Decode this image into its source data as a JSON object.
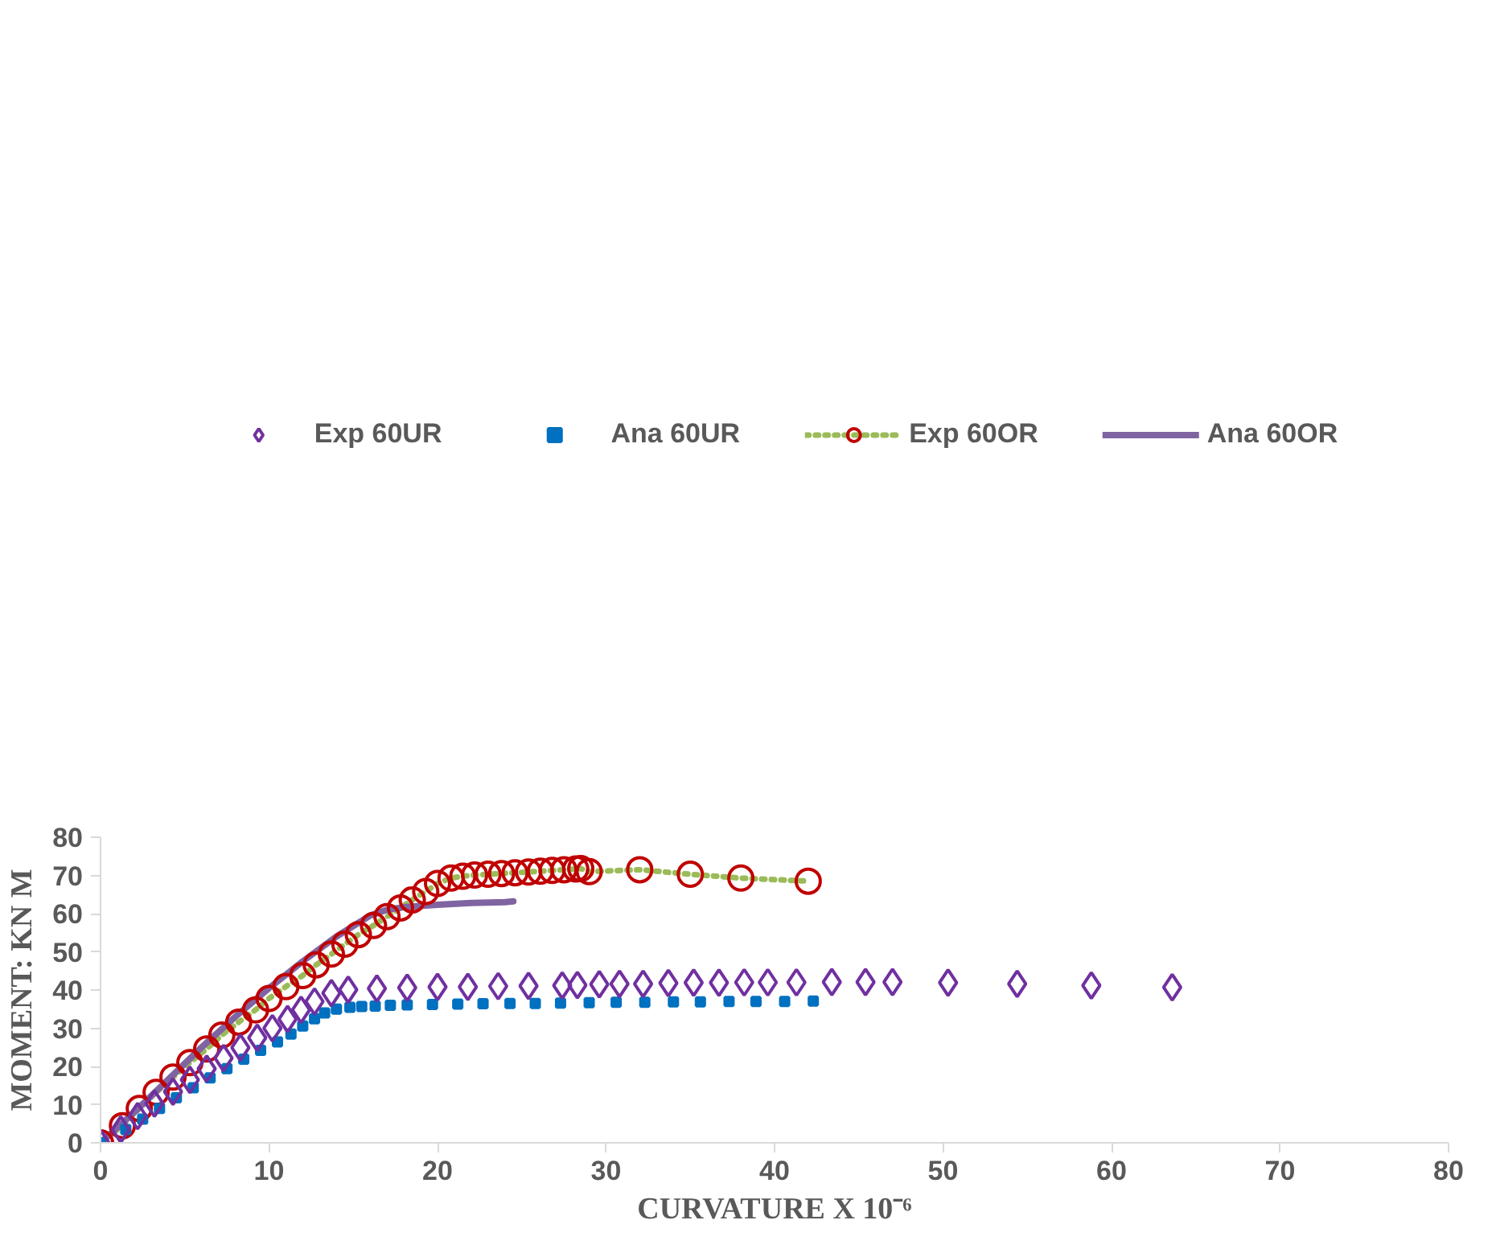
{
  "chart_data": {
    "type": "scatter",
    "xlabel": "CURVATURE X 10⁻⁶",
    "ylabel": "MOMENT: KN M",
    "xlim": [
      0,
      80
    ],
    "ylim": [
      0,
      80
    ],
    "xticks": [
      0,
      10,
      20,
      30,
      40,
      50,
      60,
      70,
      80
    ],
    "yticks": [
      0,
      10,
      20,
      30,
      40,
      50,
      60,
      70,
      80
    ],
    "grid": false,
    "legend": "top",
    "series": [
      {
        "name": "Exp 60UR",
        "marker": "diamond",
        "color": "#7030a0",
        "x": [
          0,
          1.2,
          2.2,
          3.2,
          4.3,
          5.3,
          6.3,
          7.3,
          8.3,
          9.3,
          10.2,
          11.1,
          11.9,
          12.7,
          13.7,
          14.7,
          16.4,
          18.2,
          20,
          21.8,
          23.6,
          25.4,
          27.4,
          28.3,
          29.6,
          30.8,
          32.2,
          33.7,
          35.2,
          36.7,
          38.2,
          39.6,
          41.3,
          43.4,
          45.4,
          47.0,
          50.3,
          54.4,
          58.8,
          63.6
        ],
        "values": [
          0,
          3.5,
          7,
          10.3,
          13.4,
          16.5,
          19.4,
          22.2,
          24.9,
          27.5,
          30,
          32.4,
          34.8,
          37.0,
          39.2,
          40.1,
          40.4,
          40.6,
          40.8,
          40.8,
          41.0,
          41.1,
          41.2,
          41.3,
          41.5,
          41.6,
          41.6,
          41.8,
          41.9,
          41.9,
          42,
          42,
          42,
          42.1,
          42.1,
          42.1,
          41.9,
          41.6,
          41.2,
          40.7
        ]
      },
      {
        "name": "Ana 60UR",
        "marker": "square",
        "color": "#0070c0",
        "x": [
          0,
          1.5,
          2.5,
          3.5,
          4.5,
          5.5,
          6.5,
          7.5,
          8.5,
          9.5,
          10.5,
          11.3,
          12.0,
          12.7,
          13.3,
          14.0,
          14.8,
          15.5,
          16.3,
          17.2,
          18.2,
          19.7,
          21.2,
          22.7,
          24.3,
          25.8,
          27.3,
          29,
          30.6,
          32.3,
          34,
          35.6,
          37.3,
          38.9,
          40.6,
          42.3
        ],
        "values": [
          0,
          3.5,
          6.2,
          9,
          11.8,
          14.4,
          17,
          19.4,
          21.9,
          24.2,
          26.4,
          28.5,
          30.6,
          32.5,
          34,
          35.0,
          35.5,
          35.7,
          35.8,
          36.0,
          36.1,
          36.2,
          36.3,
          36.4,
          36.5,
          36.5,
          36.6,
          36.7,
          36.8,
          36.8,
          36.9,
          36.9,
          37.0,
          37.0,
          37.0,
          37.1
        ]
      },
      {
        "name": "Exp 60OR",
        "type": "line",
        "marker": "circle",
        "line_style": "dotted",
        "color": "#c00000",
        "x": [
          0,
          1.3,
          2.3,
          3.3,
          4.3,
          5.3,
          6.3,
          7.2,
          8.2,
          9.2,
          10,
          11,
          12,
          12.8,
          13.7,
          14.5,
          15.3,
          16.2,
          17,
          17.8,
          18.5,
          19.3,
          20,
          20.8,
          21.5,
          22.2,
          23,
          23.8,
          24.6,
          25.4,
          26.1,
          26.8,
          27.5,
          28.2,
          28.5,
          29,
          32,
          35,
          38,
          42
        ],
        "values": [
          0,
          4.5,
          9,
          13.2,
          17.2,
          21,
          24.6,
          28.2,
          31.6,
          34.8,
          37.8,
          40.9,
          43.8,
          46.6,
          49.4,
          52,
          54.5,
          56.9,
          59.2,
          61.5,
          63.6,
          65.8,
          67.9,
          69.3,
          69.8,
          70.1,
          70.3,
          70.5,
          70.7,
          70.9,
          71.1,
          71.3,
          71.5,
          71.7,
          71.8,
          71.0,
          71.5,
          70.3,
          69.3,
          68.5
        ]
      },
      {
        "name": "Ana 60OR",
        "type": "line",
        "marker": "none",
        "line_style": "solid",
        "color": "#8064a2",
        "x": [
          0,
          2,
          4,
          6,
          8,
          10,
          12,
          14,
          16,
          17,
          18,
          20,
          22,
          24,
          24.5
        ],
        "values": [
          0,
          8,
          16.5,
          25,
          33,
          40.5,
          47.5,
          54,
          59.5,
          61,
          61.7,
          62.3,
          62.8,
          63,
          63.2
        ]
      }
    ]
  }
}
